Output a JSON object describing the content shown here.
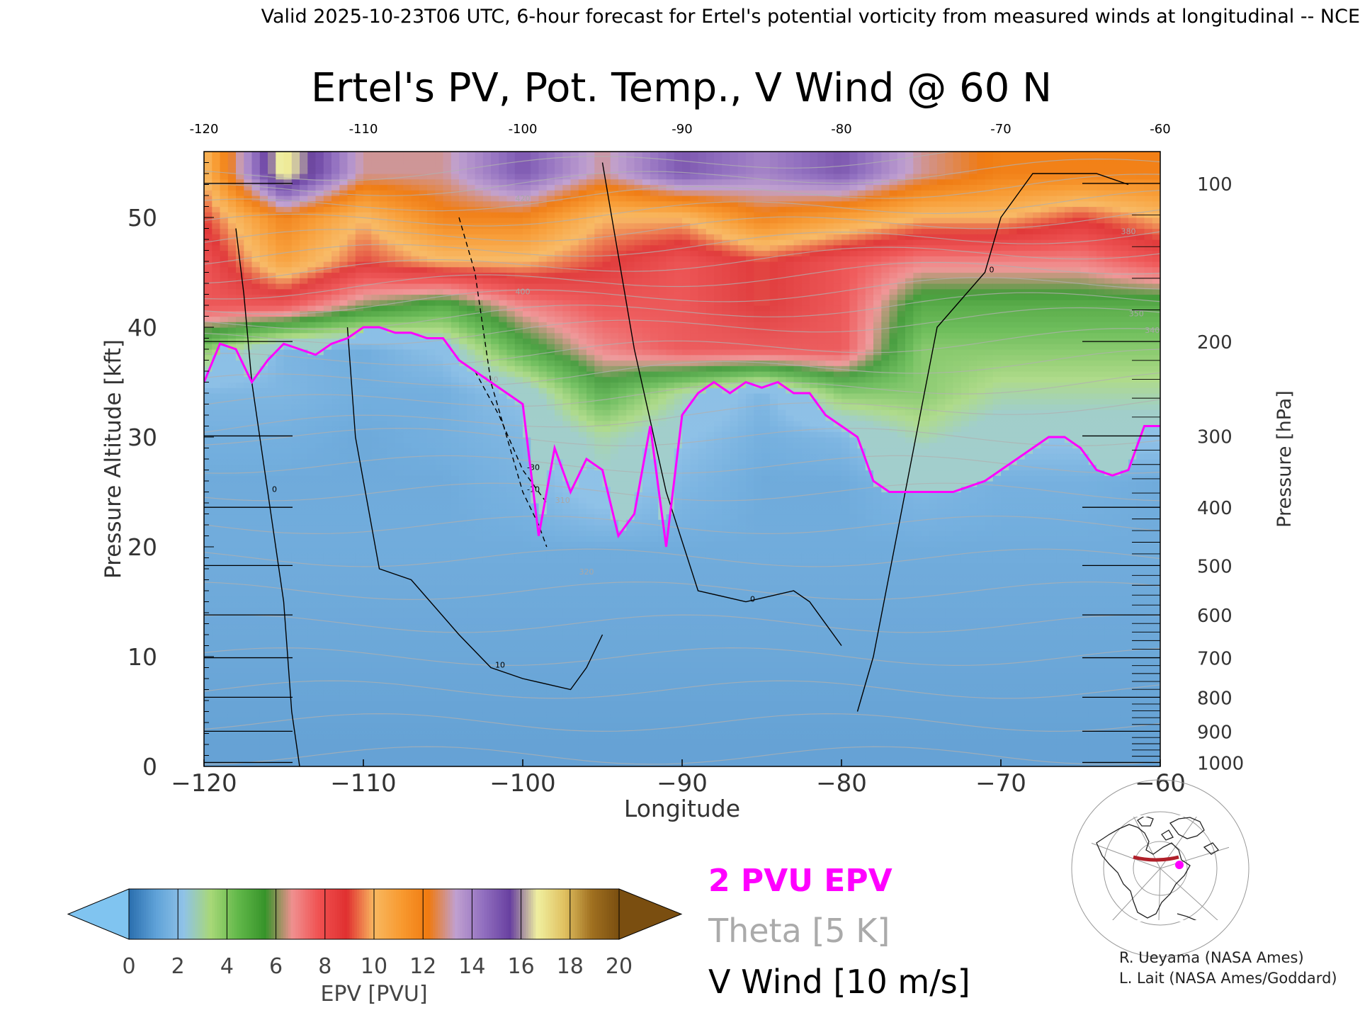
{
  "header": {
    "valid_line": "Valid 2025-10-23T06 UTC, 6-hour forecast for Ertel's potential vorticity from measured winds at longitudinal -- NCE"
  },
  "chart_data": {
    "type": "heatmap",
    "title": "Ertel's PV, Pot. Temp., V Wind @ 60 N",
    "xlabel": "Longitude",
    "ylabel_left": "Pressure Altitude [kft]",
    "ylabel_right": "Pressure [hPa]",
    "xlim": [
      -120,
      -60
    ],
    "ylim": [
      0,
      56
    ],
    "x_ticks": [
      -120,
      -110,
      -100,
      -90,
      -80,
      -70,
      -60
    ],
    "x_tick_labels": [
      "−120",
      "−110",
      "−100",
      "−90",
      "−80",
      "−70",
      "−60"
    ],
    "top_tick_labels": [
      "-120",
      "-110",
      "-100",
      "-90",
      "-80",
      "-70",
      "-60"
    ],
    "y_ticks_kft": [
      0,
      10,
      20,
      30,
      40,
      50
    ],
    "y_tick_labels": [
      "0",
      "10",
      "20",
      "30",
      "40",
      "50"
    ],
    "pressure_ticks_hpa": [
      1000,
      900,
      800,
      700,
      600,
      500,
      400,
      300,
      200,
      100
    ],
    "pressure_ticks_kft": [
      0.36,
      3.2,
      6.3,
      9.9,
      13.8,
      18.3,
      23.6,
      30.1,
      38.7,
      53.1
    ],
    "pressure_tick_labels": [
      "1000",
      "900",
      "800",
      "700",
      "600",
      "500",
      "400",
      "300",
      "200",
      "100"
    ],
    "tropopause_2pvu": {
      "lon": [
        -120,
        -119,
        -118,
        -117,
        -116,
        -115,
        -114,
        -113,
        -112,
        -111,
        -110,
        -109,
        -108,
        -107,
        -106,
        -105,
        -104,
        -103,
        -102,
        -101,
        -100,
        -99,
        -98,
        -97,
        -96,
        -95,
        -94,
        -93,
        -92,
        -91,
        -90,
        -89,
        -88,
        -87,
        -86,
        -85,
        -84,
        -83,
        -82,
        -81,
        -80,
        -79,
        -78,
        -77,
        -76,
        -75,
        -74,
        -73,
        -72,
        -71,
        -70,
        -69,
        -68,
        -67,
        -66,
        -65,
        -64,
        -63,
        -62,
        -61,
        -60
      ],
      "kft": [
        35,
        38.5,
        38,
        35,
        37,
        38.5,
        38,
        37.5,
        38.5,
        39,
        40,
        40,
        39.5,
        39.5,
        39,
        39,
        37,
        36,
        35,
        34,
        33,
        21,
        29,
        25,
        28,
        27,
        21,
        23,
        31,
        20,
        32,
        34,
        35,
        34,
        35,
        34.5,
        35,
        34,
        34,
        32,
        31,
        30,
        26,
        25,
        25,
        25,
        25,
        25,
        25.5,
        26,
        27,
        28,
        29,
        30,
        30,
        29,
        27,
        26.5,
        27,
        31,
        31
      ]
    },
    "pv_field": {
      "description": "EPV in PVU, rows by pressure altitude (kft), columns by longitude (every 5 deg from -120 to -60)",
      "lon": [
        -120,
        -115,
        -110,
        -105,
        -100,
        -95,
        -90,
        -85,
        -80,
        -75,
        -70,
        -65,
        -60
      ],
      "kft": [
        54,
        50,
        46,
        42,
        38,
        34,
        30,
        26,
        20,
        10,
        2
      ],
      "values": [
        [
          10,
          17,
          13,
          13,
          15,
          13,
          15,
          14,
          15,
          13,
          12,
          12,
          12
        ],
        [
          9,
          12,
          10,
          12,
          12,
          10,
          10,
          12,
          11,
          10,
          10,
          9,
          10
        ],
        [
          8,
          11,
          9,
          10,
          10,
          9,
          8,
          9,
          8,
          7,
          7,
          7,
          8
        ],
        [
          8,
          8,
          6,
          5,
          7,
          8,
          8,
          9,
          8,
          5,
          5,
          5,
          5
        ],
        [
          4,
          1.5,
          1.2,
          2,
          5,
          7,
          8,
          8,
          8,
          4,
          4,
          4,
          4
        ],
        [
          1.5,
          1.5,
          1.2,
          1.2,
          2,
          5,
          3,
          1.5,
          4,
          4,
          3,
          3,
          3
        ],
        [
          1.2,
          1.2,
          1,
          1.2,
          1.5,
          3,
          2,
          1.2,
          1.5,
          3,
          2,
          2,
          2
        ],
        [
          1,
          1,
          1,
          1,
          1.3,
          2.5,
          1.5,
          1,
          1,
          1.5,
          1.2,
          1.2,
          1
        ],
        [
          1,
          1,
          1,
          1,
          1,
          1,
          1,
          1,
          1,
          1,
          1,
          1,
          1
        ],
        [
          0.8,
          0.8,
          0.8,
          0.8,
          0.8,
          0.8,
          0.8,
          0.8,
          0.8,
          0.8,
          0.8,
          0.8,
          0.8
        ],
        [
          0.6,
          0.6,
          0.6,
          0.6,
          0.6,
          0.6,
          0.6,
          0.6,
          0.6,
          0.6,
          0.6,
          0.6,
          0.6
        ]
      ]
    },
    "v_wind_contours": [
      {
        "label": "0",
        "lon": [
          -118,
          -117.5,
          -117,
          -116,
          -115,
          -114.5,
          -114
        ],
        "kft": [
          49,
          43,
          35,
          25,
          15,
          5,
          0
        ]
      },
      {
        "label": "10",
        "lon": [
          -111,
          -110.5,
          -109,
          -107,
          -104,
          -102,
          -100,
          -97,
          -96,
          -95
        ],
        "kft": [
          40,
          30,
          18,
          17,
          12,
          9,
          8,
          7,
          9,
          12
        ]
      },
      {
        "label": "-10",
        "lon": [
          -104,
          -103,
          -102,
          -100,
          -99,
          -98.5
        ],
        "kft": [
          50,
          45,
          35,
          25,
          22,
          20
        ]
      },
      {
        "label": "-30",
        "lon": [
          -103,
          -101.5,
          -100,
          -98.5
        ],
        "kft": [
          36,
          32,
          27,
          24
        ]
      },
      {
        "label": "0",
        "lon": [
          -95,
          -93,
          -91,
          -89,
          -86,
          -83,
          -82,
          -80
        ],
        "kft": [
          55,
          38,
          25,
          16,
          15,
          16,
          15,
          11
        ]
      },
      {
        "label": "0",
        "lon": [
          -79,
          -78,
          -76,
          -74,
          -71,
          -70,
          -68,
          -64,
          -62
        ],
        "kft": [
          5,
          10,
          25,
          40,
          45,
          50,
          54,
          54,
          53
        ]
      }
    ],
    "theta_k": {
      "label_values": [
        "310",
        "320",
        "330",
        "340",
        "350",
        "380",
        "400",
        "420"
      ]
    },
    "legend": {
      "colorbar_label": "EPV [PVU]",
      "colorbar_ticks": [
        "0",
        "2",
        "4",
        "6",
        "8",
        "10",
        "12",
        "14",
        "16",
        "18",
        "20"
      ],
      "colorbar_colors": [
        "#2a6eae",
        "#5fa2d8",
        "#8fc2e8",
        "#a8d878",
        "#62b84a",
        "#37942a",
        "#f09090",
        "#f05050",
        "#e03030",
        "#f8b860",
        "#f89a30",
        "#f07a10",
        "#c0a0d0",
        "#9270c0",
        "#6840a0",
        "#f0f0a0",
        "#e0c060",
        "#a07020",
        "#7a4e10"
      ],
      "under_color": "#80c4f0",
      "over_color": "#7a4e10",
      "items": [
        {
          "label": "2 PVU EPV",
          "color": "#ff00ff"
        },
        {
          "label": "Theta [5 K]",
          "color": "#aaaaaa"
        },
        {
          "label": "V Wind [10 m/s]",
          "color": "#000000"
        }
      ]
    }
  },
  "credits": {
    "line1": "R. Ueyama (NASA Ames)",
    "line2": "L. Lait (NASA Ames/Goddard)"
  }
}
